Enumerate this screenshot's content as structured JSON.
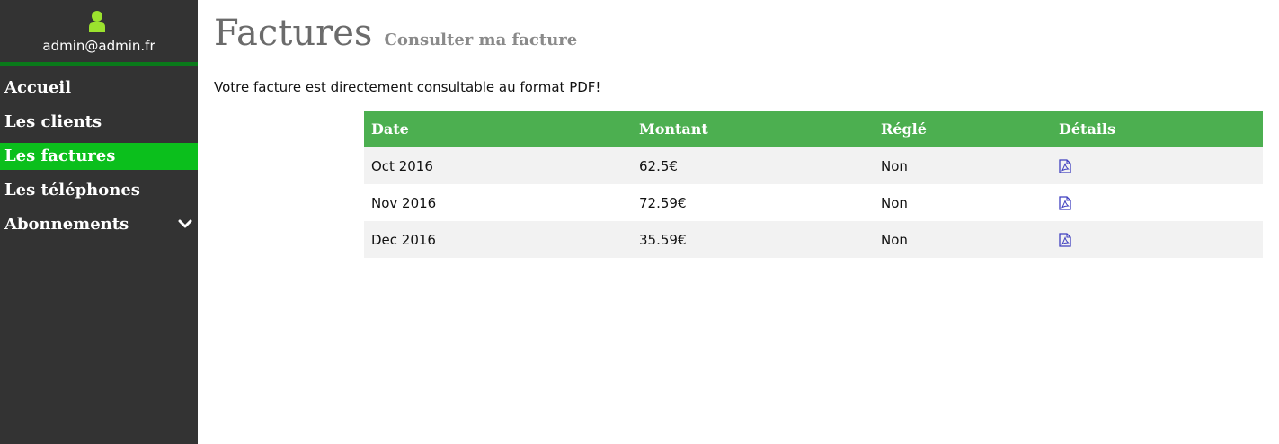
{
  "sidebar": {
    "user_icon": "user-icon",
    "user_email": "admin@admin.fr",
    "accent_color": "#0bbf1c",
    "items": [
      {
        "label": "Accueil",
        "active": false
      },
      {
        "label": "Les clients",
        "active": false
      },
      {
        "label": "Les factures",
        "active": true
      },
      {
        "label": "Les téléphones",
        "active": false
      },
      {
        "label": "Abonnements",
        "active": false,
        "icon": "chevron-down-icon"
      }
    ]
  },
  "header": {
    "title": "Factures",
    "subtitle": "Consulter ma facture"
  },
  "main": {
    "intro_text": "Votre facture est directement consultable au format PDF!"
  },
  "table": {
    "header_color": "#4caf50",
    "columns": [
      "Date",
      "Montant",
      "Réglé",
      "Détails"
    ],
    "rows": [
      {
        "date": "Oct 2016",
        "amount": "62.5€",
        "paid": "Non",
        "details_icon": "pdf-file-icon"
      },
      {
        "date": "Nov 2016",
        "amount": "72.59€",
        "paid": "Non",
        "details_icon": "pdf-file-icon"
      },
      {
        "date": "Dec 2016",
        "amount": "35.59€",
        "paid": "Non",
        "details_icon": "pdf-file-icon"
      }
    ]
  }
}
